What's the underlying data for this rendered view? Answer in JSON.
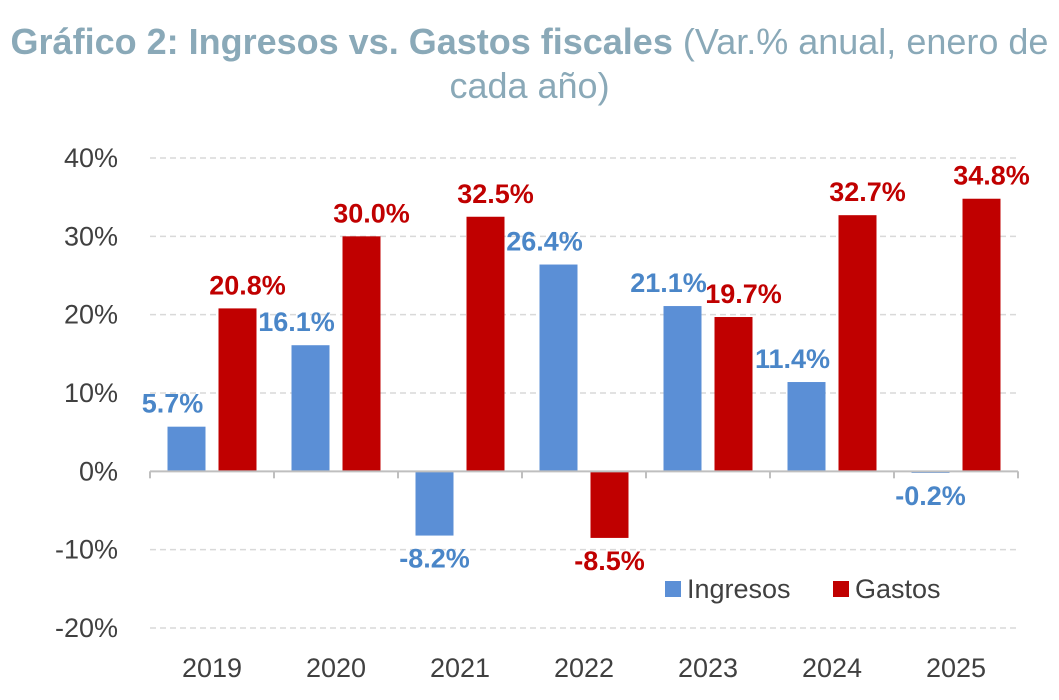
{
  "chart_data": {
    "type": "bar",
    "title": "Gráfico 2: Ingresos vs. Gastos fiscales",
    "subtitle": "(Var.% anual, enero de cada año)",
    "categories": [
      "2019",
      "2020",
      "2021",
      "2022",
      "2023",
      "2024",
      "2025"
    ],
    "series": [
      {
        "name": "Ingresos",
        "color": "#5b8fd6",
        "label_color": "#4a86c8",
        "values": [
          5.7,
          16.1,
          -8.2,
          26.4,
          21.1,
          11.4,
          -0.2
        ],
        "labels": [
          "5.7%",
          "16.1%",
          "-8.2%",
          "26.4%",
          "21.1%",
          "11.4%",
          "-0.2%"
        ]
      },
      {
        "name": "Gastos",
        "color": "#c00000",
        "label_color": "#c00000",
        "values": [
          20.8,
          30.0,
          32.5,
          -8.5,
          19.7,
          32.7,
          34.8
        ],
        "labels": [
          "20.8%",
          "30.0%",
          "32.5%",
          "-8.5%",
          "19.7%",
          "32.7%",
          "34.8%"
        ]
      }
    ],
    "ylim": [
      -20,
      40
    ],
    "yticks": [
      -20,
      -10,
      0,
      10,
      20,
      30,
      40
    ],
    "ytick_labels": [
      "-20%",
      "-10%",
      "0%",
      "10%",
      "20%",
      "30%",
      "40%"
    ],
    "xlabel": "",
    "ylabel": "",
    "grid": true,
    "legend": "bottom-right"
  }
}
